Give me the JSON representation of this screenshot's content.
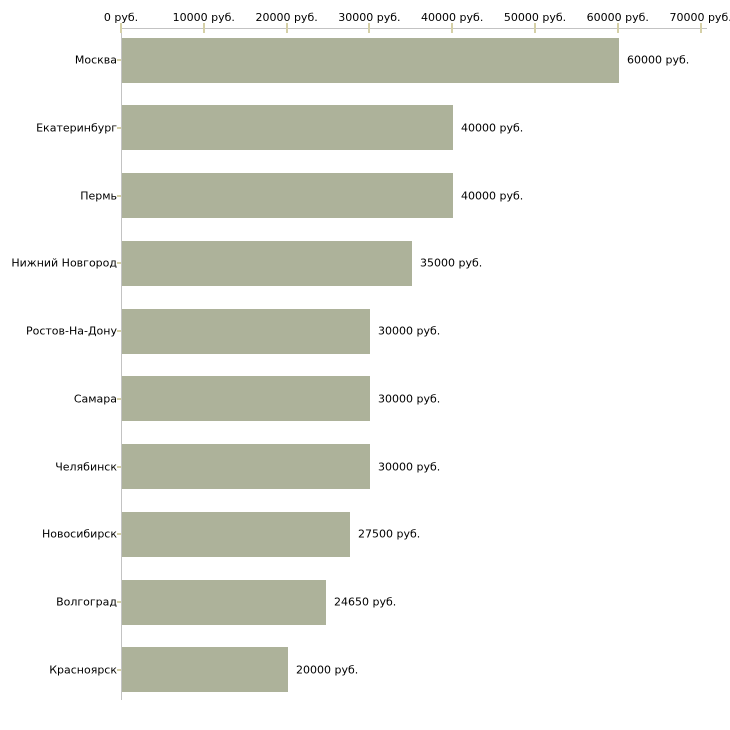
{
  "colors": {
    "background": "#ffffff",
    "bar": "#adb29a",
    "axis_line": "#c3c3c3",
    "tick": "#d5d0a7",
    "text": "#000000"
  },
  "chart_data": {
    "type": "bar",
    "orientation": "horizontal",
    "title": "",
    "xlabel": "",
    "ylabel": "",
    "unit": "руб.",
    "axis_position": "top",
    "grid": false,
    "legend": "none",
    "xlim": [
      0,
      70000
    ],
    "x_ticks": [
      0,
      10000,
      20000,
      30000,
      40000,
      50000,
      60000,
      70000
    ],
    "x_tick_labels": [
      "0 руб.",
      "10000 руб.",
      "20000 руб.",
      "30000 руб.",
      "40000 руб.",
      "50000 руб.",
      "60000 руб.",
      "70000 руб."
    ],
    "categories": [
      "Москва",
      "Екатеринбург",
      "Пермь",
      "Нижний Новгород",
      "Ростов-На-Дону",
      "Самара",
      "Челябинск",
      "Новосибирск",
      "Волгоград",
      "Красноярск"
    ],
    "values": [
      60000,
      40000,
      40000,
      35000,
      30000,
      30000,
      30000,
      27500,
      24650,
      20000
    ],
    "value_labels": [
      "60000 руб.",
      "40000 руб.",
      "40000 руб.",
      "35000 руб.",
      "30000 руб.",
      "30000 руб.",
      "30000 руб.",
      "27500 руб.",
      "24650 руб.",
      "20000 руб."
    ]
  }
}
